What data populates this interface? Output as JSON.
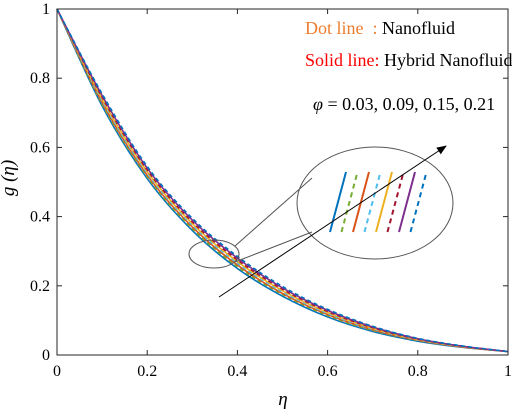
{
  "chart_data": {
    "type": "line",
    "xlabel": "η",
    "ylabel": "g (η)",
    "xlim": [
      0,
      1
    ],
    "ylim": [
      0,
      1
    ],
    "xticks": [
      0,
      0.2,
      0.4,
      0.6,
      0.8,
      1
    ],
    "yticks": [
      0,
      0.2,
      0.4,
      0.6,
      0.8,
      1
    ],
    "xtick_labels": [
      "0",
      "0.2",
      "0.4",
      "0.6",
      "0.8",
      "1"
    ],
    "ytick_labels": [
      "0",
      "0.2",
      "0.4",
      "0.6",
      "0.8",
      "1"
    ],
    "legend": {
      "dot_key": "Dot line",
      "dot_sep": "  : ",
      "dot_value": "Nanofluid",
      "solid_key": "Solid line:",
      "solid_value": " Hybrid Nanofluid",
      "dot_color": "#ED7D31",
      "solid_color": "#FF0000"
    },
    "annotation": {
      "symbol": "φ",
      "text": " = 0.03, 0.09, 0.15, 0.21"
    },
    "x": [
      0,
      0.1,
      0.2,
      0.3,
      0.4,
      0.5,
      0.6,
      0.7,
      0.8,
      0.9,
      1
    ],
    "series": [
      {
        "style": "solid",
        "color": "#0072BD",
        "values": [
          1,
          0.72,
          0.51,
          0.36,
          0.25,
          0.17,
          0.11,
          0.068,
          0.04,
          0.022,
          0.01
        ]
      },
      {
        "style": "dotted",
        "color": "#77AC30",
        "values": [
          1,
          0.725,
          0.515,
          0.365,
          0.255,
          0.175,
          0.114,
          0.071,
          0.042,
          0.023,
          0.01
        ]
      },
      {
        "style": "solid",
        "color": "#D95319",
        "values": [
          1,
          0.73,
          0.52,
          0.37,
          0.26,
          0.178,
          0.117,
          0.073,
          0.043,
          0.023,
          0.01
        ]
      },
      {
        "style": "dotted",
        "color": "#4DBEEE",
        "values": [
          1,
          0.735,
          0.525,
          0.375,
          0.265,
          0.182,
          0.12,
          0.075,
          0.044,
          0.024,
          0.01
        ]
      },
      {
        "style": "solid",
        "color": "#EDB120",
        "values": [
          1,
          0.74,
          0.53,
          0.38,
          0.27,
          0.186,
          0.123,
          0.077,
          0.045,
          0.024,
          0.01
        ]
      },
      {
        "style": "dotted",
        "color": "#A2142F",
        "values": [
          1,
          0.745,
          0.535,
          0.385,
          0.275,
          0.19,
          0.126,
          0.079,
          0.046,
          0.025,
          0.01
        ]
      },
      {
        "style": "solid",
        "color": "#7E2F8E",
        "values": [
          1,
          0.75,
          0.54,
          0.39,
          0.28,
          0.194,
          0.129,
          0.081,
          0.047,
          0.025,
          0.01
        ]
      },
      {
        "style": "dotted",
        "color": "#0072BD",
        "values": [
          1,
          0.755,
          0.545,
          0.395,
          0.285,
          0.198,
          0.132,
          0.083,
          0.048,
          0.026,
          0.01
        ]
      }
    ]
  }
}
